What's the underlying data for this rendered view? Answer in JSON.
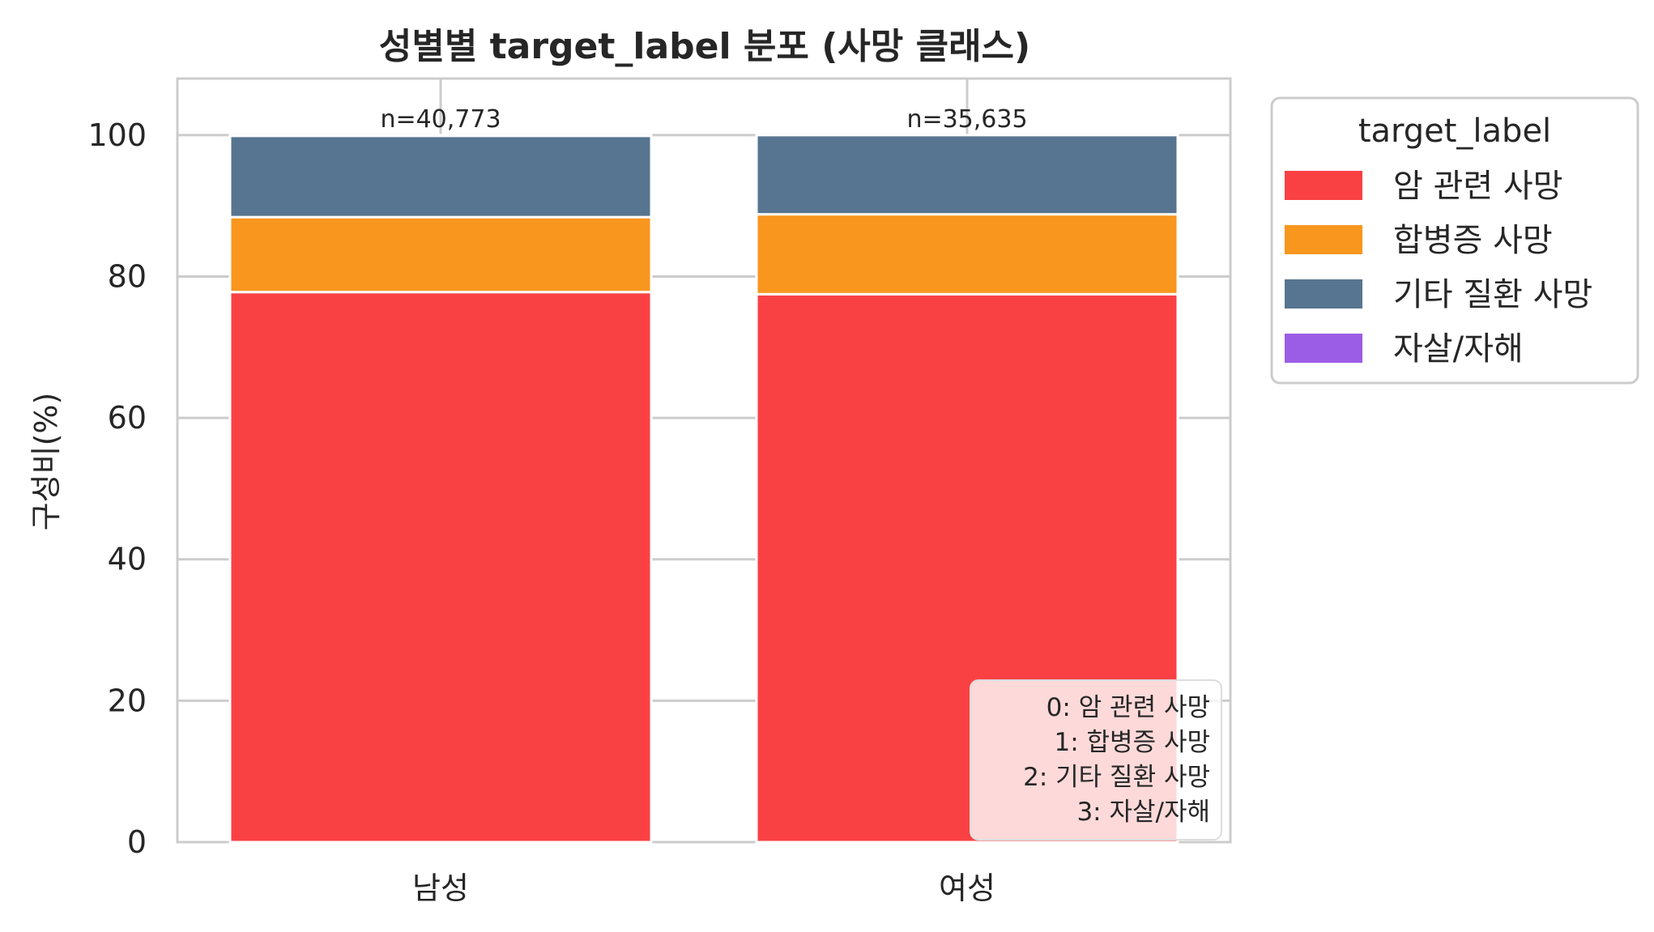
{
  "chart_data": {
    "type": "bar",
    "stacked": true,
    "title": "성별별 target_label 분포 (사망 클래스)",
    "ylabel": "구성비(%)",
    "xlabel": "",
    "ylim": [
      0,
      108
    ],
    "yticks": [
      "0",
      "20",
      "40",
      "60",
      "80",
      "100"
    ],
    "categories": [
      "남성",
      "여성"
    ],
    "totals": [
      "n=40,773",
      "n=35,635"
    ],
    "series": [
      {
        "name": "암 관련 사망",
        "color": "#f94144",
        "values": [
          77.8,
          77.5
        ]
      },
      {
        "name": "합병증 사망",
        "color": "#f8961e",
        "values": [
          10.6,
          11.3
        ]
      },
      {
        "name": "기타 질환 사망",
        "color": "#577590",
        "values": [
          11.5,
          11.2
        ]
      },
      {
        "name": "자살/자해",
        "color": "#9b5de5",
        "values": [
          0.1,
          0.0
        ]
      }
    ],
    "legend": {
      "title": "target_label",
      "placement": "outside-right"
    },
    "note": [
      "0: 암 관련 사망",
      "1: 합병증 사망",
      "2: 기타 질환 사망",
      "3: 자살/자해"
    ],
    "grid": true
  }
}
